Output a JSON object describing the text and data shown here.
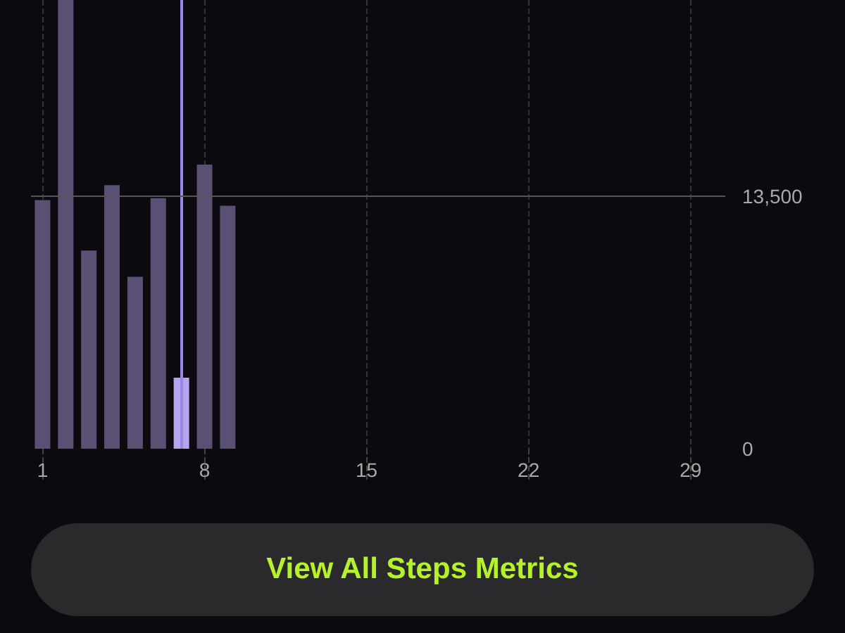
{
  "chart_data": {
    "type": "bar",
    "x": [
      1,
      2,
      3,
      4,
      5,
      6,
      7,
      8,
      9
    ],
    "values": [
      13300,
      24000,
      10600,
      14100,
      9200,
      13400,
      3800,
      15200,
      13000
    ],
    "colors": [
      "#5b4f74",
      "#5b4f74",
      "#5b4f74",
      "#5b4f74",
      "#5b4f74",
      "#5b4f74",
      "#b7a4ee",
      "#5b4f74",
      "#5b4f74"
    ],
    "xlim": [
      0.5,
      30.5
    ],
    "xticks": [
      1,
      8,
      15,
      22,
      29
    ],
    "ylim": [
      0,
      24000
    ],
    "yticks": [
      0,
      {
        "value": 13500,
        "label": "13,500"
      }
    ],
    "grid": "x",
    "ref_lines": [
      {
        "axis": "x",
        "value": 7,
        "color": "#9d86e8"
      },
      {
        "axis": "y",
        "value": 13500,
        "color": "#555555"
      }
    ],
    "annotations": [
      "View All Steps Metrics"
    ]
  }
}
